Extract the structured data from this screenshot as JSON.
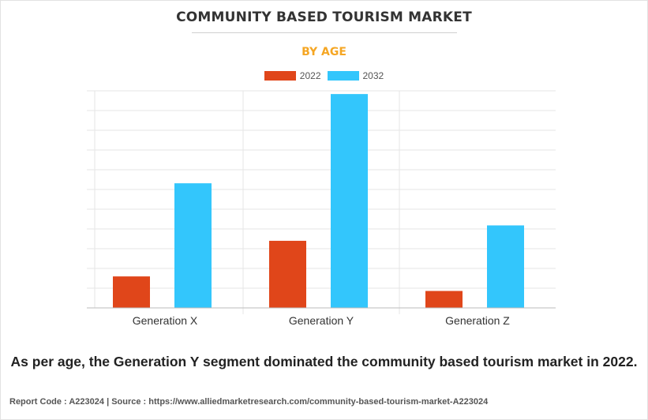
{
  "header": {
    "title": "COMMUNITY BASED TOURISM MARKET",
    "subtitle": "BY AGE"
  },
  "colors": {
    "subtitle": "#f5a623",
    "series_2022": "#e0461a",
    "series_2032": "#33c6fc",
    "grid": "#e6e6e6",
    "axis": "#bbbbbb"
  },
  "chart_data": {
    "type": "bar",
    "categories": [
      "Generation X",
      "Generation Y",
      "Generation Z"
    ],
    "series": [
      {
        "name": "2022",
        "values": [
          0.145,
          0.309,
          0.078
        ]
      },
      {
        "name": "2032",
        "values": [
          0.574,
          0.985,
          0.38
        ]
      }
    ],
    "ylim": [
      0,
      1
    ],
    "grid": true,
    "legend": "top-center",
    "yticks_visible": false
  },
  "caption": "As per age, the Generation Y segment dominated the community based tourism market in 2022.",
  "footer": "Report Code : A223024  |  Source : https://www.alliedmarketresearch.com/community-based-tourism-market-A223024"
}
